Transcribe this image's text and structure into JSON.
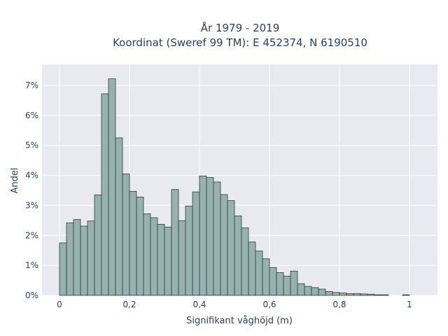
{
  "chart_data": {
    "type": "bar",
    "title_line1": "År 1979 - 2019",
    "title_line2": "Koordinat (Sweref 99 TM): E 452374, N 6190510",
    "xlabel": "Signifikant våghöjd (m)",
    "ylabel": "Andel",
    "xlim": [
      -0.05,
      1.08
    ],
    "ylim": [
      0,
      0.077
    ],
    "grid": true,
    "x_ticks": [
      0,
      0.2,
      0.4,
      0.6,
      0.8,
      1
    ],
    "x_tick_labels": [
      "0",
      "0,2",
      "0,4",
      "0,6",
      "0,8",
      "1"
    ],
    "y_ticks": [
      0,
      0.01,
      0.02,
      0.03,
      0.04,
      0.05,
      0.06,
      0.07
    ],
    "y_tick_labels": [
      "0%",
      "1%",
      "2%",
      "3%",
      "4%",
      "5%",
      "6%",
      "7%"
    ],
    "bin_width": 0.02,
    "bin_start": 0.0,
    "values": [
      0.0175,
      0.0242,
      0.0253,
      0.0231,
      0.0248,
      0.0335,
      0.0672,
      0.0722,
      0.0525,
      0.0405,
      0.0347,
      0.0328,
      0.0272,
      0.0259,
      0.0237,
      0.0228,
      0.0353,
      0.0249,
      0.0298,
      0.0345,
      0.0398,
      0.0393,
      0.0378,
      0.0336,
      0.0316,
      0.0265,
      0.0225,
      0.0178,
      0.0148,
      0.0122,
      0.0093,
      0.0076,
      0.0064,
      0.0081,
      0.0039,
      0.003,
      0.0026,
      0.0021,
      0.0013,
      0.001,
      0.0008,
      0.0006,
      0.0006,
      0.0005,
      0.0004,
      0.0002,
      0.0002,
      0.0,
      0.0,
      0.0002
    ],
    "colors": {
      "plot_bg": "#e9e9f2",
      "bar_fill": "#97b0b0",
      "bar_edge": "#2f3b3b",
      "text": "#2a3f5f"
    }
  }
}
